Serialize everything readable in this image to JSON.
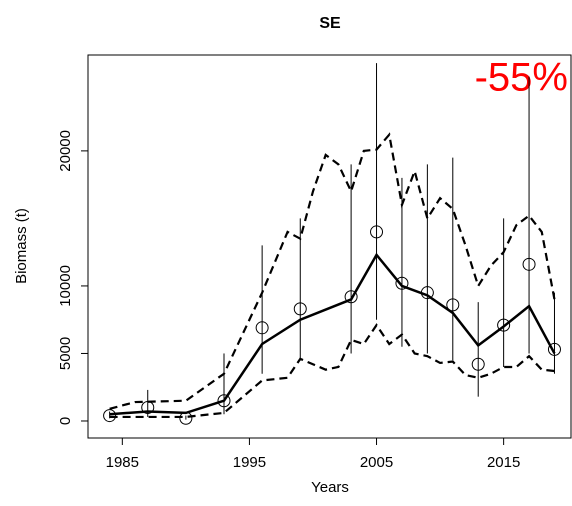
{
  "chart_data": {
    "type": "line",
    "title": "SE",
    "x_label": "Years",
    "y_label": "Biomass (t)",
    "annotation": "-55%",
    "annotation_color": "#ff0000",
    "xlim": [
      1982.3,
      2020.3
    ],
    "ylim": [
      -1260,
      27100
    ],
    "xticks": [
      1985,
      1995,
      2005,
      2015
    ],
    "yticks": [
      0,
      5000,
      10000,
      20000
    ],
    "observed": {
      "x": [
        1984,
        1987,
        1990,
        1993,
        1996,
        1999,
        2003,
        2005,
        2007,
        2009,
        2011,
        2013,
        2015,
        2017,
        2019
      ],
      "values": [
        400,
        1000,
        200,
        1500,
        6900,
        8300,
        9200,
        14000,
        10200,
        9500,
        8600,
        4200,
        7100,
        11600,
        5300
      ],
      "lower": [
        200,
        300,
        100,
        500,
        3500,
        4500,
        5000,
        7500,
        5500,
        5000,
        4500,
        1800,
        4000,
        5000,
        3500
      ],
      "upper": [
        700,
        2300,
        400,
        5000,
        13000,
        15000,
        19000,
        26500,
        18000,
        19000,
        19500,
        8800,
        15000,
        25500,
        9500
      ]
    },
    "fit": {
      "x": [
        1984,
        1987,
        1990,
        1993,
        1996,
        1999,
        2003,
        2005,
        2007,
        2009,
        2011,
        2013,
        2015,
        2017,
        2019
      ],
      "values": [
        500,
        700,
        600,
        1500,
        5700,
        7500,
        9000,
        12300,
        10000,
        9300,
        8000,
        5600,
        7000,
        8500,
        5000
      ]
    },
    "upper_bound": {
      "x": [
        1984,
        1986,
        1990,
        1993,
        1996,
        1998,
        1999,
        2000,
        2001,
        2002,
        2003,
        2004,
        2005,
        2006,
        2007,
        2008,
        2009,
        2010,
        2011,
        2012,
        2013,
        2014,
        2015,
        2016,
        2017,
        2018,
        2019
      ],
      "values": [
        900,
        1400,
        1500,
        3500,
        9500,
        14000,
        13500,
        17000,
        19700,
        19000,
        17000,
        20000,
        20100,
        21200,
        16000,
        18500,
        15000,
        16500,
        15700,
        13000,
        10000,
        11500,
        12500,
        14500,
        15200,
        14000,
        9000
      ]
    },
    "lower_bound": {
      "x": [
        1984,
        1990,
        1993,
        1996,
        1998,
        1999,
        2001,
        2002,
        2003,
        2004,
        2005,
        2006,
        2007,
        2008,
        2009,
        2010,
        2011,
        2012,
        2013,
        2014,
        2015,
        2016,
        2017,
        2018,
        2019
      ],
      "values": [
        300,
        300,
        600,
        3000,
        3200,
        4600,
        3800,
        4000,
        6000,
        5700,
        7100,
        5700,
        6400,
        5000,
        4800,
        4300,
        4400,
        3400,
        3200,
        3500,
        4000,
        4000,
        4800,
        3800,
        3700
      ]
    }
  }
}
